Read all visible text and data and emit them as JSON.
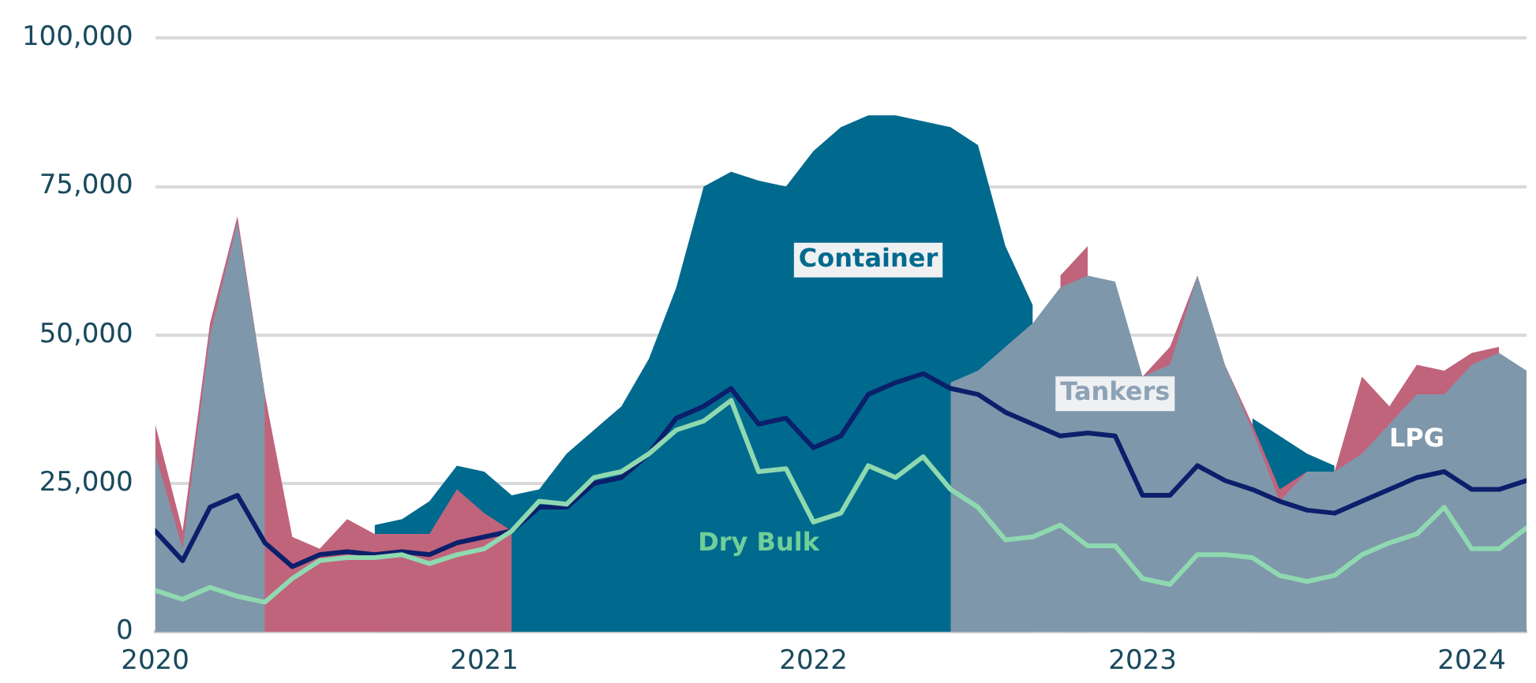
{
  "chart_data": {
    "type": "line",
    "x": [
      "2020-01",
      "2020-02",
      "2020-03",
      "2020-04",
      "2020-05",
      "2020-06",
      "2020-07",
      "2020-08",
      "2020-09",
      "2020-10",
      "2020-11",
      "2020-12",
      "2021-01",
      "2021-02",
      "2021-03",
      "2021-04",
      "2021-05",
      "2021-06",
      "2021-07",
      "2021-08",
      "2021-09",
      "2021-10",
      "2021-11",
      "2021-12",
      "2022-01",
      "2022-02",
      "2022-03",
      "2022-04",
      "2022-05",
      "2022-06",
      "2022-07",
      "2022-08",
      "2022-09",
      "2022-10",
      "2022-11",
      "2022-12",
      "2023-01",
      "2023-02",
      "2023-03",
      "2023-04",
      "2023-05",
      "2023-06",
      "2023-07",
      "2023-08",
      "2023-09",
      "2023-10",
      "2023-11",
      "2023-12",
      "2024-01",
      "2024-02",
      "2024-03"
    ],
    "series": [
      {
        "name": "Container",
        "type": "area",
        "color": "#006a8e",
        "values": [
          null,
          null,
          null,
          null,
          null,
          null,
          null,
          null,
          18000,
          19000,
          22000,
          28000,
          27000,
          23000,
          24000,
          30000,
          34000,
          38000,
          46000,
          58000,
          75000,
          77500,
          76000,
          75000,
          81000,
          85000,
          87000,
          87000,
          86000,
          85000,
          82000,
          65000,
          55000,
          null,
          null,
          null,
          null,
          null,
          null,
          null,
          36000,
          33000,
          30000,
          28000,
          null,
          null,
          null,
          null,
          null,
          null,
          null
        ]
      },
      {
        "name": "LPG",
        "type": "area",
        "color": "#c0647c",
        "values": [
          35000,
          17000,
          52000,
          70000,
          40000,
          16000,
          14000,
          19000,
          16500,
          16500,
          16500,
          24000,
          20000,
          17000,
          null,
          null,
          null,
          null,
          null,
          null,
          null,
          null,
          null,
          null,
          null,
          null,
          null,
          null,
          null,
          null,
          null,
          null,
          null,
          60000,
          65000,
          null,
          43000,
          48000,
          60000,
          45000,
          35000,
          24000,
          27000,
          27000,
          43000,
          38000,
          45000,
          44000,
          47000,
          48000,
          null
        ]
      },
      {
        "name": "Tankers",
        "type": "area",
        "color": "#7f97ab",
        "values": [
          30000,
          14000,
          50000,
          69000,
          40000,
          null,
          null,
          null,
          null,
          null,
          null,
          null,
          null,
          null,
          null,
          null,
          null,
          null,
          null,
          null,
          null,
          null,
          null,
          null,
          null,
          null,
          null,
          null,
          null,
          42000,
          44000,
          48000,
          52000,
          58000,
          60000,
          59000,
          43000,
          45000,
          60000,
          45000,
          34000,
          22000,
          27000,
          27000,
          30000,
          35000,
          40000,
          40000,
          45000,
          47000,
          44000
        ]
      },
      {
        "type": "line",
        "color": "#0b1f6b",
        "values": [
          17000,
          12000,
          21000,
          23000,
          15000,
          11000,
          13000,
          13500,
          13000,
          13500,
          13000,
          15000,
          16000,
          17000,
          21000,
          21000,
          25000,
          26000,
          30000,
          36000,
          38000,
          41000,
          35000,
          36000,
          31000,
          33000,
          40000,
          42000,
          43500,
          41000,
          40000,
          37000,
          35000,
          33000,
          33500,
          33000,
          23000,
          23000,
          28000,
          25500,
          24000,
          22000,
          20500,
          20000,
          22000,
          24000,
          26000,
          27000,
          24000,
          24000,
          25500
        ]
      },
      {
        "name": "Dry Bulk",
        "type": "line",
        "color": "#8fd9b0",
        "values": [
          7000,
          5500,
          7500,
          6000,
          5000,
          9000,
          12000,
          12500,
          12500,
          13000,
          11500,
          13000,
          14000,
          17000,
          22000,
          21500,
          26000,
          27000,
          30000,
          34000,
          35500,
          39000,
          27000,
          27500,
          18500,
          20000,
          28000,
          26000,
          29500,
          24000,
          21000,
          15500,
          16000,
          18000,
          14500,
          14500,
          9000,
          8000,
          13000,
          13000,
          12500,
          9500,
          8500,
          9500,
          13000,
          15000,
          16500,
          21000,
          14000,
          14000,
          17500
        ]
      }
    ],
    "xlim": [
      "2020-01",
      "2024-03"
    ],
    "xticks": [
      {
        "value": "2020",
        "label": "2020"
      },
      {
        "value": "2021",
        "label": "2021"
      },
      {
        "value": "2022",
        "label": "2022"
      },
      {
        "value": "2023",
        "label": "2023"
      },
      {
        "value": "2024",
        "label": "2024"
      }
    ],
    "ylim": [
      0,
      100000
    ],
    "yticks": [
      {
        "value": 0,
        "label": "0"
      },
      {
        "value": 25000,
        "label": "25,000"
      },
      {
        "value": 50000,
        "label": "50,000"
      },
      {
        "value": 75000,
        "label": "75,000"
      },
      {
        "value": 100000,
        "label": "100,000"
      }
    ],
    "grid": "y",
    "legend": false
  }
}
